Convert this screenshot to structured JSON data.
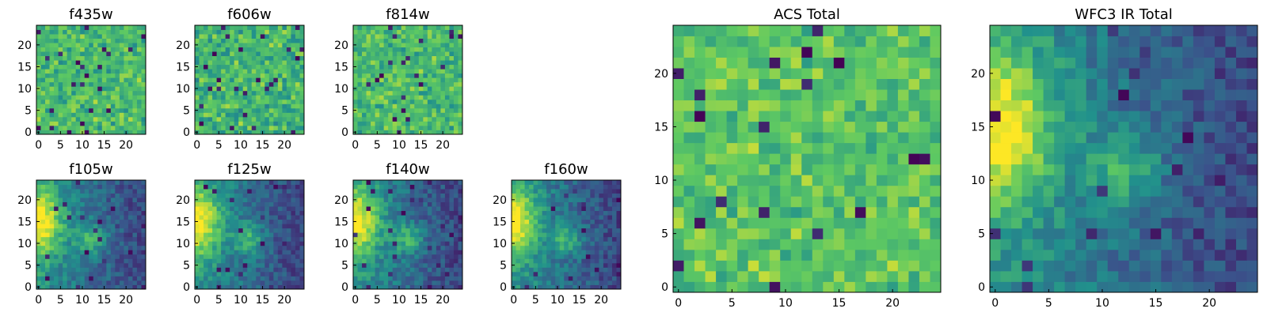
{
  "figure": {
    "background": "#ffffff",
    "colormap": "viridis",
    "colormap_stops": [
      "#440154",
      "#3b528b",
      "#21918c",
      "#5ec962",
      "#fde725"
    ]
  },
  "chart_data": [
    {
      "id": "f435w",
      "type": "heatmap",
      "title": "f435w",
      "grid": [
        25,
        25
      ],
      "xlim": [
        0,
        24
      ],
      "ylim": [
        0,
        24
      ],
      "xticks": [
        0,
        5,
        10,
        15,
        20
      ],
      "yticks": [
        0,
        5,
        10,
        15,
        20
      ],
      "field": "noise",
      "seed": 11,
      "mean": 0.68,
      "spread": 0.22
    },
    {
      "id": "f606w",
      "type": "heatmap",
      "title": "f606w",
      "grid": [
        25,
        25
      ],
      "xlim": [
        0,
        24
      ],
      "ylim": [
        0,
        24
      ],
      "xticks": [
        0,
        5,
        10,
        15,
        20
      ],
      "yticks": [
        0,
        5,
        10,
        15,
        20
      ],
      "field": "noise",
      "seed": 23,
      "mean": 0.66,
      "spread": 0.24
    },
    {
      "id": "f814w",
      "type": "heatmap",
      "title": "f814w",
      "grid": [
        25,
        25
      ],
      "xlim": [
        0,
        24
      ],
      "ylim": [
        0,
        24
      ],
      "xticks": [
        0,
        5,
        10,
        15,
        20
      ],
      "yticks": [
        0,
        5,
        10,
        15,
        20
      ],
      "field": "noise",
      "seed": 37,
      "mean": 0.68,
      "spread": 0.22
    },
    {
      "id": "f105w",
      "type": "heatmap",
      "title": "f105w",
      "grid": [
        25,
        25
      ],
      "xlim": [
        0,
        24
      ],
      "ylim": [
        0,
        24
      ],
      "xticks": [
        0,
        5,
        10,
        15,
        20
      ],
      "yticks": [
        0,
        5,
        10,
        15,
        20
      ],
      "field": "smooth",
      "seed": 41
    },
    {
      "id": "f125w",
      "type": "heatmap",
      "title": "f125w",
      "grid": [
        25,
        25
      ],
      "xlim": [
        0,
        24
      ],
      "ylim": [
        0,
        24
      ],
      "xticks": [
        0,
        5,
        10,
        15,
        20
      ],
      "yticks": [
        0,
        5,
        10,
        15,
        20
      ],
      "field": "smooth",
      "seed": 53
    },
    {
      "id": "f140w",
      "type": "heatmap",
      "title": "f140w",
      "grid": [
        25,
        25
      ],
      "xlim": [
        0,
        24
      ],
      "ylim": [
        0,
        24
      ],
      "xticks": [
        0,
        5,
        10,
        15,
        20
      ],
      "yticks": [
        0,
        5,
        10,
        15,
        20
      ],
      "field": "smooth",
      "seed": 67
    },
    {
      "id": "f160w",
      "type": "heatmap",
      "title": "f160w",
      "grid": [
        25,
        25
      ],
      "xlim": [
        0,
        24
      ],
      "ylim": [
        0,
        24
      ],
      "xticks": [
        0,
        5,
        10,
        15,
        20
      ],
      "yticks": [
        0,
        5,
        10,
        15,
        20
      ],
      "field": "smooth",
      "seed": 79
    },
    {
      "id": "acs",
      "type": "heatmap",
      "title": "ACS Total",
      "grid": [
        25,
        25
      ],
      "xlim": [
        0,
        24
      ],
      "ylim": [
        0,
        24
      ],
      "xticks": [
        0,
        5,
        10,
        15,
        20
      ],
      "yticks": [
        0,
        5,
        10,
        15,
        20
      ],
      "field": "noise",
      "seed": 97,
      "mean": 0.72,
      "spread": 0.2
    },
    {
      "id": "wfc3",
      "type": "heatmap",
      "title": "WFC3 IR Total",
      "grid": [
        25,
        25
      ],
      "xlim": [
        0,
        24
      ],
      "ylim": [
        0,
        24
      ],
      "xticks": [
        0,
        5,
        10,
        15,
        20
      ],
      "yticks": [
        0,
        5,
        10,
        15,
        20
      ],
      "field": "smooth",
      "seed": 103
    }
  ]
}
